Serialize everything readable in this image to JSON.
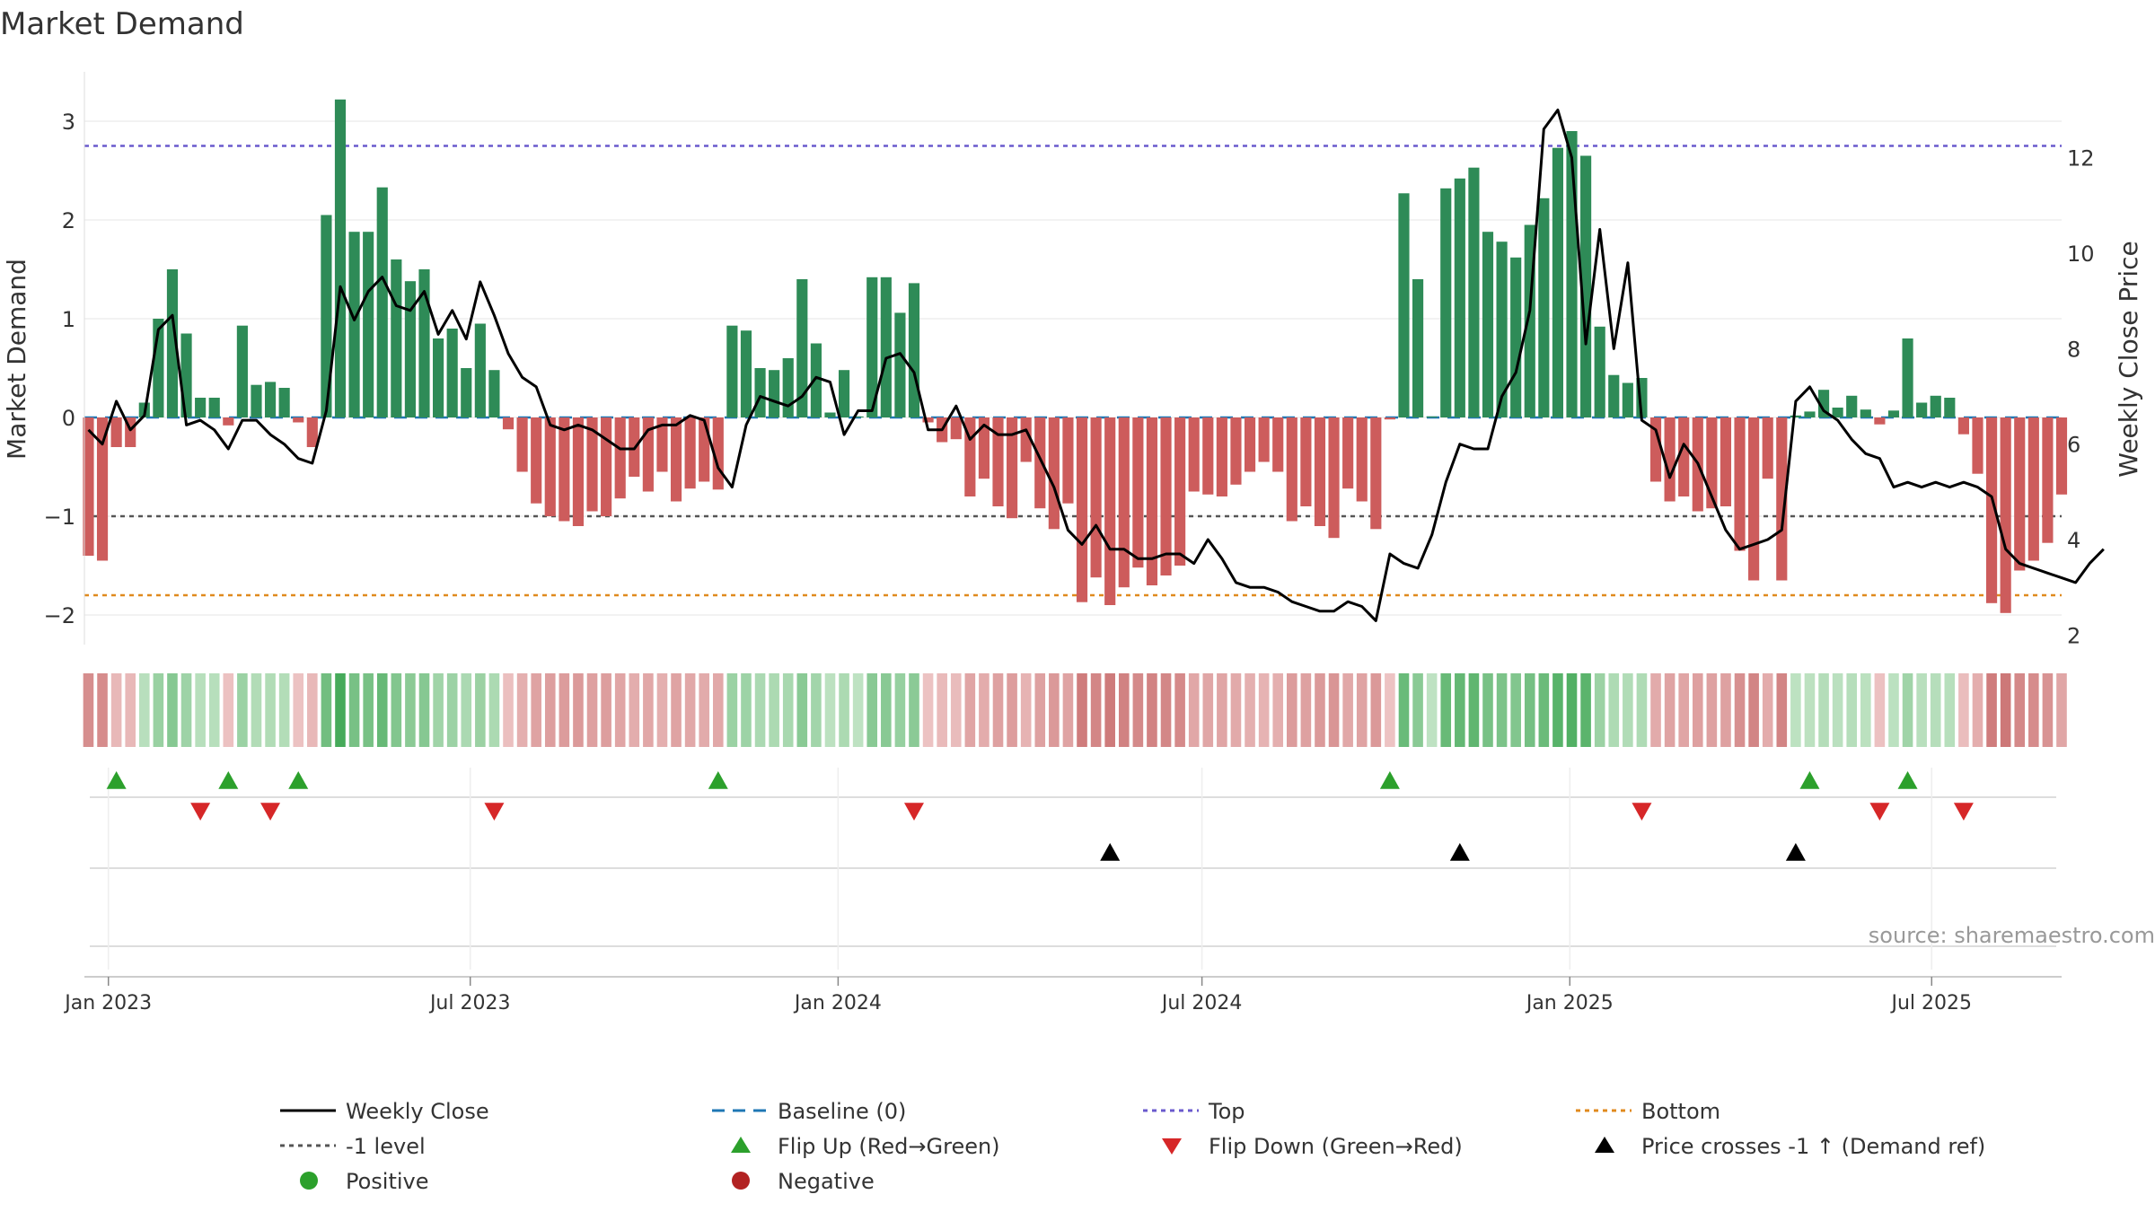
{
  "title": "Market Demand",
  "source_label": "source: sharemaestro.com",
  "colors": {
    "green_bar": "#2e8b57",
    "red_bar": "#cd5c5c",
    "price_line": "#000000",
    "baseline": "#1f77b4",
    "top": "#6a5acd",
    "bottom": "#e08a1e",
    "minus1": "#555555",
    "flip_up": "#2ca02c",
    "flip_down": "#d62728",
    "cross": "#000000",
    "positive": "#2ca02c",
    "negative": "#b22222"
  },
  "chart_data": {
    "type": "bar",
    "ylabel": "Market Demand",
    "y2label": "Weekly Close Price",
    "ylim": [
      -2.3,
      3.5
    ],
    "y2lim": [
      1.8,
      13.8
    ],
    "yticks": [
      -2,
      -1,
      0,
      1,
      2,
      3
    ],
    "yticklabels": [
      "−2",
      "−1",
      "0",
      "1",
      "2",
      "3"
    ],
    "y2ticks": [
      2,
      4,
      6,
      8,
      10,
      12
    ],
    "y2ticklabels": [
      "2",
      "4",
      "6",
      "8",
      "10",
      "12"
    ],
    "xlim": [
      "2022-12-20",
      "2025-09-04"
    ],
    "xticks": [
      "2023-01-01",
      "2023-07-01",
      "2024-01-01",
      "2024-07-01",
      "2025-01-01",
      "2025-07-01"
    ],
    "xticklabels": [
      "Jan 2023",
      "Jul 2023",
      "Jan 2024",
      "Jul 2024",
      "Jan 2025",
      "Jul 2025"
    ],
    "start_week": "2022-12-22",
    "lines": {
      "top": 2.75,
      "bottom": -1.8,
      "minus1": -1.0,
      "baseline": 0
    },
    "demand": [
      -1.4,
      -1.45,
      -0.3,
      -0.3,
      0.15,
      1.0,
      1.5,
      0.85,
      0.2,
      0.2,
      -0.08,
      0.93,
      0.33,
      0.36,
      0.3,
      -0.05,
      -0.3,
      2.05,
      3.22,
      1.88,
      1.88,
      2.33,
      1.6,
      1.38,
      1.5,
      0.8,
      0.9,
      0.5,
      0.95,
      0.48,
      -0.12,
      -0.55,
      -0.87,
      -1.0,
      -1.05,
      -1.1,
      -0.95,
      -1.0,
      -0.82,
      -0.6,
      -0.75,
      -0.55,
      -0.85,
      -0.72,
      -0.65,
      -0.73,
      0.93,
      0.88,
      0.5,
      0.48,
      0.6,
      1.4,
      0.75,
      0.05,
      0.48,
      0.01,
      1.42,
      1.42,
      1.06,
      1.36,
      -0.05,
      -0.25,
      -0.22,
      -0.8,
      -0.62,
      -0.9,
      -1.02,
      -0.45,
      -0.92,
      -1.13,
      -0.87,
      -1.87,
      -1.62,
      -1.9,
      -1.72,
      -1.52,
      -1.7,
      -1.6,
      -1.5,
      -0.75,
      -0.78,
      -0.8,
      -0.68,
      -0.55,
      -0.45,
      -0.55,
      -1.05,
      -0.9,
      -1.1,
      -1.22,
      -0.72,
      -0.85,
      -1.13,
      -0.02,
      2.27,
      1.4,
      0.01,
      2.32,
      2.42,
      2.53,
      1.88,
      1.78,
      1.62,
      1.95,
      2.22,
      2.73,
      2.9,
      2.65,
      0.92,
      0.43,
      0.35,
      0.4,
      -0.65,
      -0.85,
      -0.8,
      -0.95,
      -0.92,
      -0.9,
      -1.35,
      -1.65,
      -0.62,
      -1.65,
      0.02,
      0.06,
      0.28,
      0.1,
      0.22,
      0.08,
      -0.07,
      0.07,
      0.8,
      0.15,
      0.22,
      0.2,
      -0.17,
      -0.57,
      -1.88,
      -1.98,
      -1.55,
      -1.45,
      -1.27,
      -0.78
    ],
    "price": [
      6.3,
      6.0,
      6.9,
      6.3,
      6.6,
      8.4,
      8.7,
      6.4,
      6.5,
      6.3,
      5.9,
      6.5,
      6.5,
      6.2,
      6.0,
      5.7,
      5.6,
      6.7,
      9.3,
      8.6,
      9.2,
      9.5,
      8.9,
      8.8,
      9.2,
      8.3,
      8.8,
      8.2,
      9.4,
      8.7,
      7.9,
      7.4,
      7.2,
      6.4,
      6.3,
      6.4,
      6.3,
      6.1,
      5.9,
      5.9,
      6.3,
      6.4,
      6.4,
      6.6,
      6.5,
      5.5,
      5.1,
      6.4,
      7.0,
      6.9,
      6.8,
      7.0,
      7.4,
      7.3,
      6.2,
      6.7,
      6.7,
      7.8,
      7.9,
      7.5,
      6.3,
      6.3,
      6.8,
      6.1,
      6.4,
      6.2,
      6.2,
      6.3,
      5.7,
      5.1,
      4.2,
      3.9,
      4.3,
      3.8,
      3.8,
      3.6,
      3.6,
      3.7,
      3.7,
      3.5,
      4.0,
      3.6,
      3.1,
      3.0,
      3.0,
      2.9,
      2.7,
      2.6,
      2.5,
      2.5,
      2.7,
      2.6,
      2.3,
      3.7,
      3.5,
      3.4,
      4.1,
      5.2,
      6.0,
      5.9,
      5.9,
      7.0,
      7.5,
      8.8,
      12.6,
      13.0,
      12.0,
      8.1,
      10.5,
      8.0,
      9.8,
      6.5,
      6.3,
      5.3,
      6.0,
      5.6,
      4.9,
      4.2,
      3.8,
      3.9,
      4.0,
      4.2,
      6.9,
      7.2,
      6.7,
      6.5,
      6.1,
      5.8,
      5.7,
      5.1,
      5.2,
      5.1,
      5.2,
      5.1,
      5.2,
      5.1,
      4.9,
      3.8,
      3.5,
      3.4,
      3.3,
      3.2,
      3.1,
      3.5,
      3.8
    ],
    "flip_up_weeks": [
      2,
      10,
      15,
      45,
      93,
      123,
      130
    ],
    "flip_down_weeks": [
      8,
      13,
      29,
      59,
      111,
      128,
      134
    ],
    "cross_weeks": [
      73,
      98,
      122
    ],
    "legend": [
      [
        "Weekly Close",
        "Baseline (0)",
        "Top",
        "Bottom"
      ],
      [
        "-1 level",
        "Flip Up (Red→Green)",
        "Flip Down (Green→Red)",
        "Price crosses -1 ↑ (Demand ref)"
      ],
      [
        "Positive",
        "Negative"
      ]
    ],
    "legend_placement": "bottom",
    "grid": true
  }
}
